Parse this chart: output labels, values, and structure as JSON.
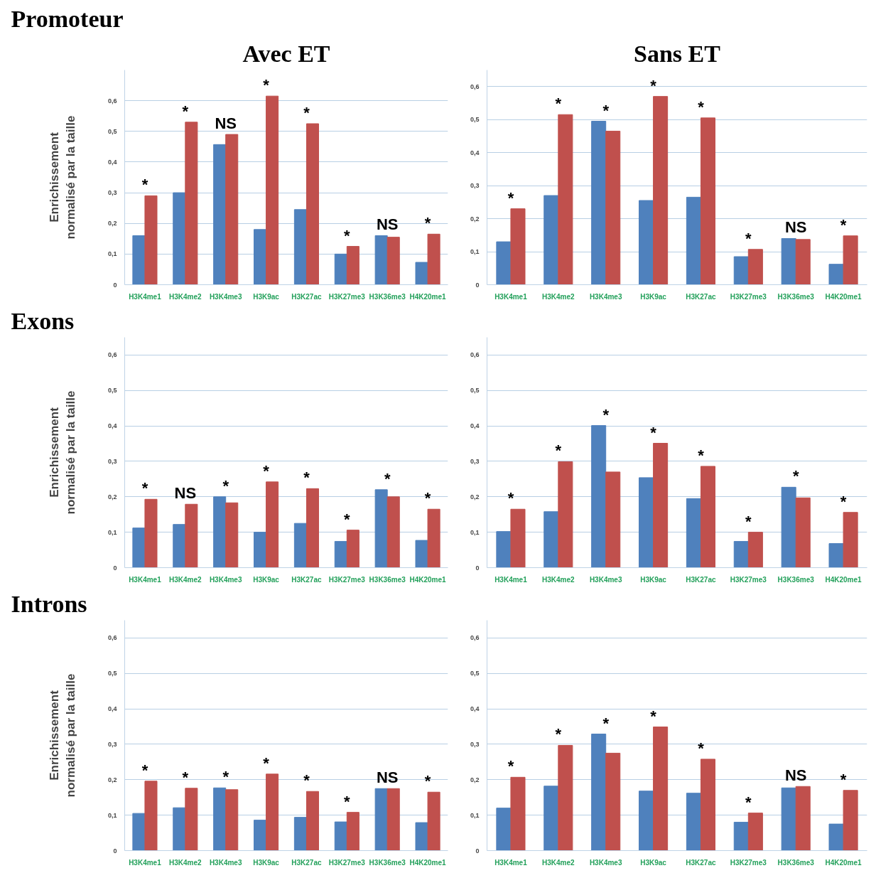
{
  "chart_data": [
    {
      "type": "bar",
      "subtitle": "Promoteur",
      "title": "Avec ET",
      "ylabel": "Enrichissement normalisé par la taille",
      "categories": [
        "H3K4me1",
        "H3K4me2",
        "H3K4me3",
        "H3K9ac",
        "H3K27ac",
        "H3K27me3",
        "H3K36me3",
        "H4K20me1"
      ],
      "series": [
        {
          "color": "#4f81bd",
          "values": [
            0.16,
            0.3,
            0.457,
            0.18,
            0.245,
            0.1,
            0.16,
            0.073
          ]
        },
        {
          "color": "#c0504d",
          "values": [
            0.29,
            0.53,
            0.49,
            0.615,
            0.525,
            0.125,
            0.155,
            0.165
          ]
        }
      ],
      "ylim": [
        0,
        0.7
      ],
      "yticks": [
        0,
        {
          "value": 0.1,
          "label": "0,1"
        },
        {
          "value": 0.2,
          "label": "0,2"
        },
        {
          "value": 0.3,
          "label": "0,3"
        },
        {
          "value": 0.4,
          "label": "0,4"
        },
        {
          "value": 0.5,
          "label": "0,5"
        },
        {
          "value": 0.6,
          "label": "0,6"
        }
      ],
      "grid": "y",
      "annotations": [
        {
          "text": "*",
          "x": "H3K4me1",
          "y": 0.29
        },
        {
          "text": "*",
          "x": "H3K4me2",
          "y": 0.53
        },
        {
          "text": "NS",
          "x": "H3K4me3",
          "y": 0.49
        },
        {
          "text": "*",
          "x": "H3K9ac",
          "y": 0.615
        },
        {
          "text": "*",
          "x": "H3K27ac",
          "y": 0.525
        },
        {
          "text": "*",
          "x": "H3K27me3",
          "y": 0.125
        },
        {
          "text": "NS",
          "x": "H3K36me3",
          "y": 0.16
        },
        {
          "text": "*",
          "x": "H4K20me1",
          "y": 0.165
        }
      ]
    },
    {
      "type": "bar",
      "title": "Sans ET",
      "categories": [
        "H3K4me1",
        "H3K4me2",
        "H3K4me3",
        "H3K9ac",
        "H3K27ac",
        "H3K27me3",
        "H3K36me3",
        "H4K20me1"
      ],
      "series": [
        {
          "color": "#4f81bd",
          "values": [
            0.13,
            0.27,
            0.495,
            0.255,
            0.265,
            0.085,
            0.14,
            0.062
          ]
        },
        {
          "color": "#c0504d",
          "values": [
            0.23,
            0.515,
            0.465,
            0.57,
            0.505,
            0.107,
            0.137,
            0.148
          ]
        }
      ],
      "ylim": [
        0,
        0.65
      ],
      "yticks": [
        0,
        {
          "value": 0.1,
          "label": "0,1"
        },
        {
          "value": 0.2,
          "label": "0,2"
        },
        {
          "value": 0.3,
          "label": "0,3"
        },
        {
          "value": 0.4,
          "label": "0,4"
        },
        {
          "value": 0.5,
          "label": "0,5"
        },
        {
          "value": 0.6,
          "label": "0,6"
        }
      ],
      "grid": "y",
      "annotations": [
        {
          "text": "*",
          "x": "H3K4me1",
          "y": 0.23
        },
        {
          "text": "*",
          "x": "H3K4me2",
          "y": 0.515
        },
        {
          "text": "*",
          "x": "H3K4me3",
          "y": 0.495
        },
        {
          "text": "*",
          "x": "H3K9ac",
          "y": 0.57
        },
        {
          "text": "*",
          "x": "H3K27ac",
          "y": 0.505
        },
        {
          "text": "*",
          "x": "H3K27me3",
          "y": 0.107
        },
        {
          "text": "NS",
          "x": "H3K36me3",
          "y": 0.14
        },
        {
          "text": "*",
          "x": "H4K20me1",
          "y": 0.148
        }
      ]
    },
    {
      "type": "bar",
      "subtitle": "Exons",
      "ylabel": "Enrichissement normalisé par la taille",
      "categories": [
        "H3K4me1",
        "H3K4me2",
        "H3K4me3",
        "H3K9ac",
        "H3K27ac",
        "H3K27me3",
        "H3K36me3",
        "H4K20me1"
      ],
      "series": [
        {
          "color": "#4f81bd",
          "values": [
            0.112,
            0.122,
            0.2,
            0.1,
            0.125,
            0.074,
            0.22,
            0.077
          ]
        },
        {
          "color": "#c0504d",
          "values": [
            0.193,
            0.179,
            0.183,
            0.242,
            0.223,
            0.106,
            0.2,
            0.165
          ]
        }
      ],
      "ylim": [
        0,
        0.65
      ],
      "yticks": [
        0,
        {
          "value": 0.1,
          "label": "0,1"
        },
        {
          "value": 0.2,
          "label": "0,2"
        },
        {
          "value": 0.3,
          "label": "0,3"
        },
        {
          "value": 0.4,
          "label": "0,4"
        },
        {
          "value": 0.5,
          "label": "0,5"
        },
        {
          "value": 0.6,
          "label": "0,6"
        }
      ],
      "grid": "y",
      "annotations": [
        {
          "text": "*",
          "x": "H3K4me1",
          "y": 0.193
        },
        {
          "text": "NS",
          "x": "H3K4me2",
          "y": 0.179
        },
        {
          "text": "*",
          "x": "H3K4me3",
          "y": 0.2
        },
        {
          "text": "*",
          "x": "H3K9ac",
          "y": 0.242
        },
        {
          "text": "*",
          "x": "H3K27ac",
          "y": 0.223
        },
        {
          "text": "*",
          "x": "H3K27me3",
          "y": 0.106
        },
        {
          "text": "*",
          "x": "H3K36me3",
          "y": 0.22
        },
        {
          "text": "*",
          "x": "H4K20me1",
          "y": 0.165
        }
      ]
    },
    {
      "type": "bar",
      "categories": [
        "H3K4me1",
        "H3K4me2",
        "H3K4me3",
        "H3K9ac",
        "H3K27ac",
        "H3K27me3",
        "H3K36me3",
        "H4K20me1"
      ],
      "series": [
        {
          "color": "#4f81bd",
          "values": [
            0.102,
            0.158,
            0.401,
            0.254,
            0.195,
            0.074,
            0.227,
            0.068
          ]
        },
        {
          "color": "#c0504d",
          "values": [
            0.165,
            0.299,
            0.27,
            0.351,
            0.286,
            0.1,
            0.197,
            0.156
          ]
        }
      ],
      "ylim": [
        0,
        0.65
      ],
      "yticks": [
        0,
        {
          "value": 0.1,
          "label": "0,1"
        },
        {
          "value": 0.2,
          "label": "0,2"
        },
        {
          "value": 0.3,
          "label": "0,3"
        },
        {
          "value": 0.4,
          "label": "0,4"
        },
        {
          "value": 0.5,
          "label": "0,5"
        },
        {
          "value": 0.6,
          "label": "0,6"
        }
      ],
      "grid": "y",
      "annotations": [
        {
          "text": "*",
          "x": "H3K4me1",
          "y": 0.165
        },
        {
          "text": "*",
          "x": "H3K4me2",
          "y": 0.299
        },
        {
          "text": "*",
          "x": "H3K4me3",
          "y": 0.401
        },
        {
          "text": "*",
          "x": "H3K9ac",
          "y": 0.351
        },
        {
          "text": "*",
          "x": "H3K27ac",
          "y": 0.286
        },
        {
          "text": "*",
          "x": "H3K27me3",
          "y": 0.1
        },
        {
          "text": "*",
          "x": "H3K36me3",
          "y": 0.227
        },
        {
          "text": "*",
          "x": "H4K20me1",
          "y": 0.156
        }
      ]
    },
    {
      "type": "bar",
      "subtitle": "Introns",
      "ylabel": "Enrichissement normalisé par la taille",
      "categories": [
        "H3K4me1",
        "H3K4me2",
        "H3K4me3",
        "H3K9ac",
        "H3K27ac",
        "H3K27me3",
        "H3K36me3",
        "H4K20me1"
      ],
      "series": [
        {
          "color": "#4f81bd",
          "values": [
            0.105,
            0.121,
            0.177,
            0.086,
            0.094,
            0.081,
            0.175,
            0.079
          ]
        },
        {
          "color": "#c0504d",
          "values": [
            0.196,
            0.176,
            0.172,
            0.216,
            0.167,
            0.108,
            0.175,
            0.165
          ]
        }
      ],
      "ylim": [
        0,
        0.65
      ],
      "yticks": [
        0,
        {
          "value": 0.1,
          "label": "0,1"
        },
        {
          "value": 0.2,
          "label": "0,2"
        },
        {
          "value": 0.3,
          "label": "0,3"
        },
        {
          "value": 0.4,
          "label": "0,4"
        },
        {
          "value": 0.5,
          "label": "0,5"
        },
        {
          "value": 0.6,
          "label": "0,6"
        }
      ],
      "grid": "y",
      "annotations": [
        {
          "text": "*",
          "x": "H3K4me1",
          "y": 0.196
        },
        {
          "text": "*",
          "x": "H3K4me2",
          "y": 0.176
        },
        {
          "text": "*",
          "x": "H3K4me3",
          "y": 0.177
        },
        {
          "text": "*",
          "x": "H3K9ac",
          "y": 0.216
        },
        {
          "text": "*",
          "x": "H3K27ac",
          "y": 0.167
        },
        {
          "text": "*",
          "x": "H3K27me3",
          "y": 0.108
        },
        {
          "text": "NS",
          "x": "H3K36me3",
          "y": 0.175
        },
        {
          "text": "*",
          "x": "H4K20me1",
          "y": 0.165
        }
      ]
    },
    {
      "type": "bar",
      "categories": [
        "H3K4me1",
        "H3K4me2",
        "H3K4me3",
        "H3K9ac",
        "H3K27ac",
        "H3K27me3",
        "H3K36me3",
        "H4K20me1"
      ],
      "series": [
        {
          "color": "#4f81bd",
          "values": [
            0.12,
            0.182,
            0.329,
            0.168,
            0.162,
            0.08,
            0.177,
            0.075
          ]
        },
        {
          "color": "#c0504d",
          "values": [
            0.207,
            0.297,
            0.275,
            0.349,
            0.258,
            0.106,
            0.181,
            0.17
          ]
        }
      ],
      "ylim": [
        0,
        0.65
      ],
      "yticks": [
        0,
        {
          "value": 0.1,
          "label": "0,1"
        },
        {
          "value": 0.2,
          "label": "0,2"
        },
        {
          "value": 0.3,
          "label": "0,3"
        },
        {
          "value": 0.4,
          "label": "0,4"
        },
        {
          "value": 0.5,
          "label": "0,5"
        },
        {
          "value": 0.6,
          "label": "0,6"
        }
      ],
      "grid": "y",
      "annotations": [
        {
          "text": "*",
          "x": "H3K4me1",
          "y": 0.207
        },
        {
          "text": "*",
          "x": "H3K4me2",
          "y": 0.297
        },
        {
          "text": "*",
          "x": "H3K4me3",
          "y": 0.329
        },
        {
          "text": "*",
          "x": "H3K9ac",
          "y": 0.349
        },
        {
          "text": "*",
          "x": "H3K27ac",
          "y": 0.258
        },
        {
          "text": "*",
          "x": "H3K27me3",
          "y": 0.106
        },
        {
          "text": "NS",
          "x": "H3K36me3",
          "y": 0.181
        },
        {
          "text": "*",
          "x": "H4K20me1",
          "y": 0.17
        }
      ]
    }
  ]
}
